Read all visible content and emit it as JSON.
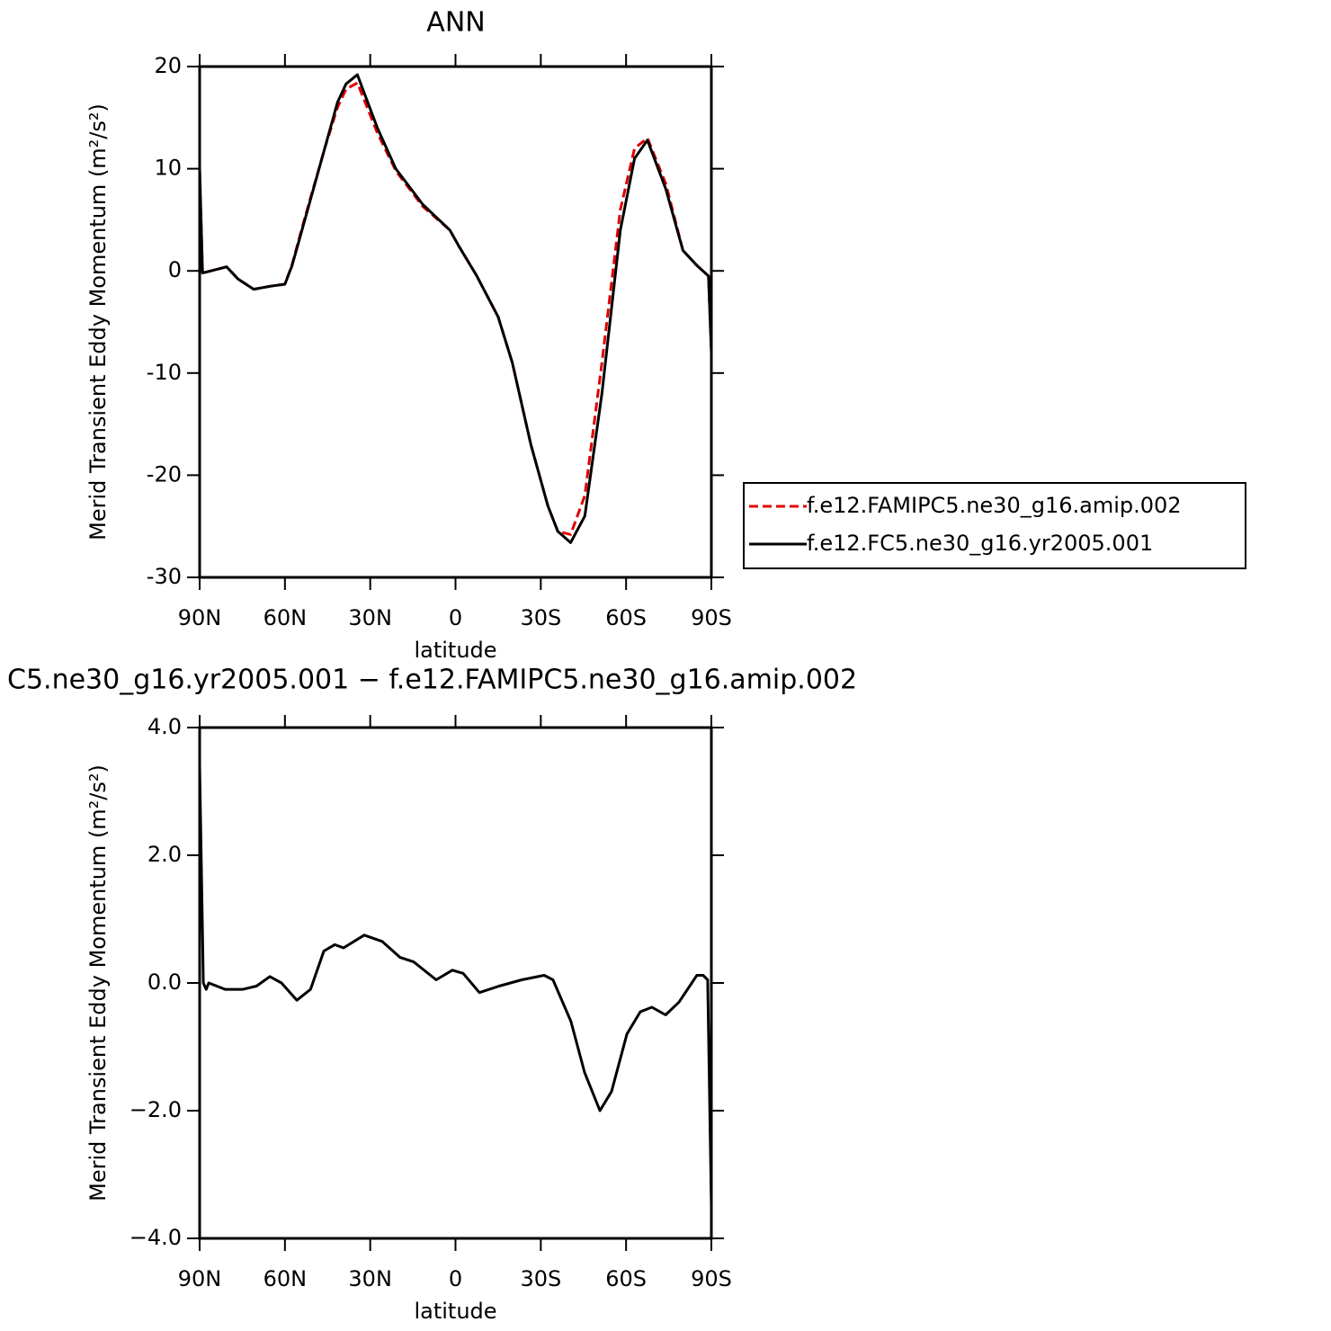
{
  "chart_data": [
    {
      "type": "line",
      "title": "ANN",
      "ylabel": "Merid Transient Eddy Momentum (m²/s²)",
      "xlabel": "latitude",
      "xlim": [
        90,
        -90
      ],
      "xticks": [
        {
          "value": 90,
          "label": "90N"
        },
        {
          "value": 60,
          "label": "60N"
        },
        {
          "value": 30,
          "label": "30N"
        },
        0,
        {
          "value": -30,
          "label": "30S"
        },
        {
          "value": -60,
          "label": "60S"
        },
        {
          "value": -90,
          "label": "90S"
        }
      ],
      "ylim": [
        -30,
        20
      ],
      "yticks": [
        -30,
        -20,
        -10,
        0,
        10,
        20
      ],
      "legend": "right",
      "x": [
        90,
        89,
        86,
        80.5,
        76.5,
        71,
        65,
        60,
        57.5,
        53,
        46,
        41.5,
        38.5,
        34.5,
        27.5,
        21,
        11.5,
        2,
        -1,
        -7.5,
        -15,
        -20,
        -26.5,
        -32.5,
        -36,
        -40.5,
        -45.5,
        -51.5,
        -58,
        -63,
        -67.5,
        -74,
        -80,
        -85,
        -89,
        -90
      ],
      "series": [
        {
          "name": "f.e12.FAMIPC5.ne30_g16.amip.002",
          "color": "#e00000",
          "dash": true,
          "values": [
            10,
            -0.2,
            0,
            0.4,
            -0.8,
            -1.8,
            -1.5,
            -1.3,
            0.6,
            5.2,
            12,
            16,
            17.8,
            18.4,
            13.5,
            9.8,
            6.3,
            4,
            2.5,
            -0.5,
            -4.5,
            -9,
            -17,
            -23,
            -25.5,
            -25.8,
            -22,
            -9,
            6,
            12,
            13,
            8.5,
            2,
            0.5,
            -0.5,
            -8
          ]
        },
        {
          "name": "f.e12.FC5.ne30_g16.yr2005.001",
          "color": "#000000",
          "dash": false,
          "values": [
            10,
            -0.2,
            0,
            0.4,
            -0.8,
            -1.8,
            -1.5,
            -1.3,
            0.5,
            5,
            12,
            16.5,
            18.3,
            19.2,
            14,
            10,
            6.5,
            4,
            2.5,
            -0.5,
            -4.5,
            -9,
            -17,
            -23,
            -25.5,
            -26.6,
            -24,
            -12,
            4,
            11,
            12.8,
            8,
            2,
            0.5,
            -0.5,
            -8
          ]
        }
      ]
    },
    {
      "type": "line",
      "title": "C5.ne30_g16.yr2005.001 − f.e12.FAMIPC5.ne30_g16.amip.002",
      "ylabel": "Merid Transient Eddy Momentum (m²/s²)",
      "xlabel": "latitude",
      "xlim": [
        90,
        -90
      ],
      "xticks": [
        {
          "value": 90,
          "label": "90N"
        },
        {
          "value": 60,
          "label": "60N"
        },
        {
          "value": 30,
          "label": "30N"
        },
        0,
        {
          "value": -30,
          "label": "30S"
        },
        {
          "value": -60,
          "label": "60S"
        },
        {
          "value": -90,
          "label": "90S"
        }
      ],
      "ylim": [
        -4,
        4
      ],
      "yticks": [
        {
          "value": -4,
          "label": "−4.0"
        },
        {
          "value": -2,
          "label": "−2.0"
        },
        {
          "value": 0,
          "label": "0.0"
        },
        {
          "value": 2,
          "label": "2.0"
        },
        {
          "value": 4,
          "label": "4.0"
        }
      ],
      "x": [
        90,
        88.7,
        87.7,
        86.8,
        81,
        74.8,
        70,
        65.3,
        61.2,
        55.8,
        51,
        46.3,
        42.5,
        39.4,
        32.1,
        25.8,
        19.5,
        14.7,
        6.8,
        1.1,
        -2.7,
        -8.4,
        -15.3,
        -23.3,
        -31.2,
        -34.3,
        -40.6,
        -45.4,
        -50.8,
        -54.9,
        -60.3,
        -65,
        -69.1,
        -73.9,
        -78.6,
        -84.9,
        -87.1,
        -88.7,
        -90
      ],
      "series": [
        {
          "color": "#000000",
          "values": [
            3.4,
            0,
            -0.1,
            0,
            -0.1,
            -0.1,
            -0.05,
            0.1,
            0,
            -0.27,
            -0.1,
            0.5,
            0.6,
            0.55,
            0.75,
            0.65,
            0.4,
            0.33,
            0.05,
            0.2,
            0.15,
            -0.15,
            -0.05,
            0.05,
            0.12,
            0.05,
            -0.6,
            -1.4,
            -2,
            -1.7,
            -0.8,
            -0.45,
            -0.38,
            -0.5,
            -0.3,
            0.12,
            0.12,
            0.05,
            -3.5
          ]
        }
      ]
    }
  ]
}
